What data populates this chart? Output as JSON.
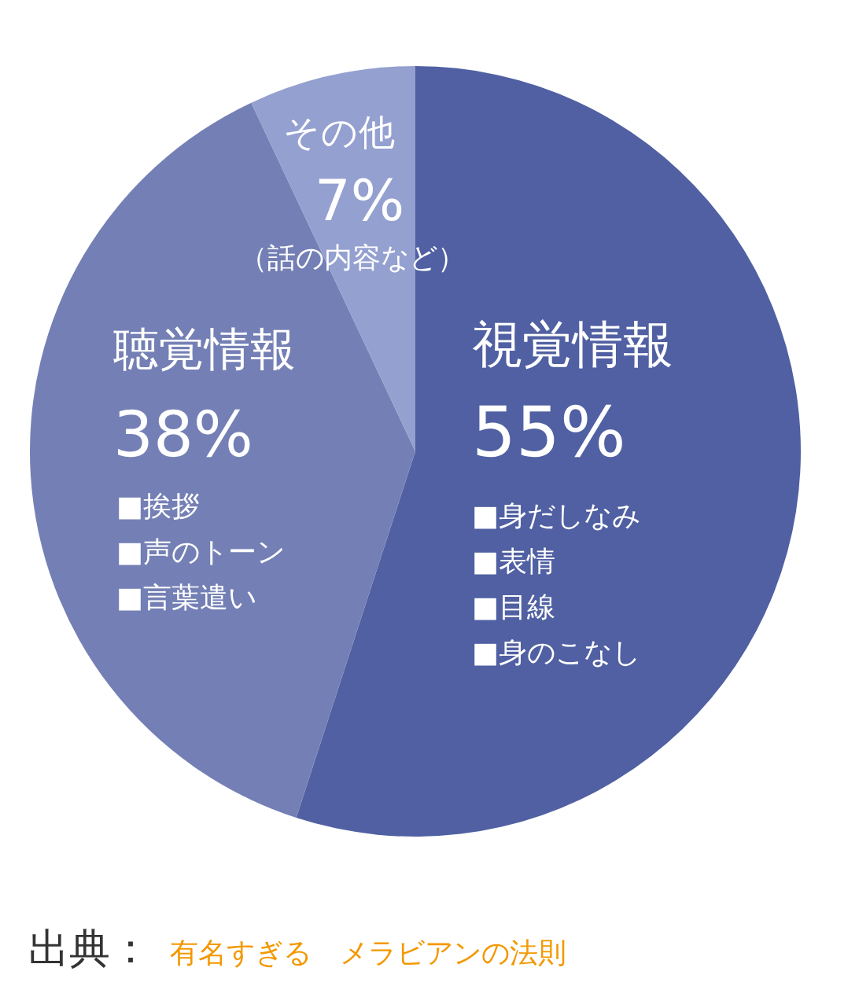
{
  "chart_data": {
    "type": "pie",
    "categories": [
      "視覚情報",
      "聴覚情報",
      "その他"
    ],
    "values": [
      55,
      38,
      7
    ],
    "value_labels": [
      "55%",
      "38%",
      "7%"
    ],
    "colors": [
      "#5060a2",
      "#7480b5",
      "#94a0cf"
    ],
    "annotations": [
      "（話の内容など）",
      "■挨拶",
      "■声のトーン",
      "■言葉遣い",
      "■身だしなみ",
      "■表情",
      "■目線",
      "■身のこなし",
      "出典：",
      "有名すぎる　メラビアンの法則"
    ]
  }
}
